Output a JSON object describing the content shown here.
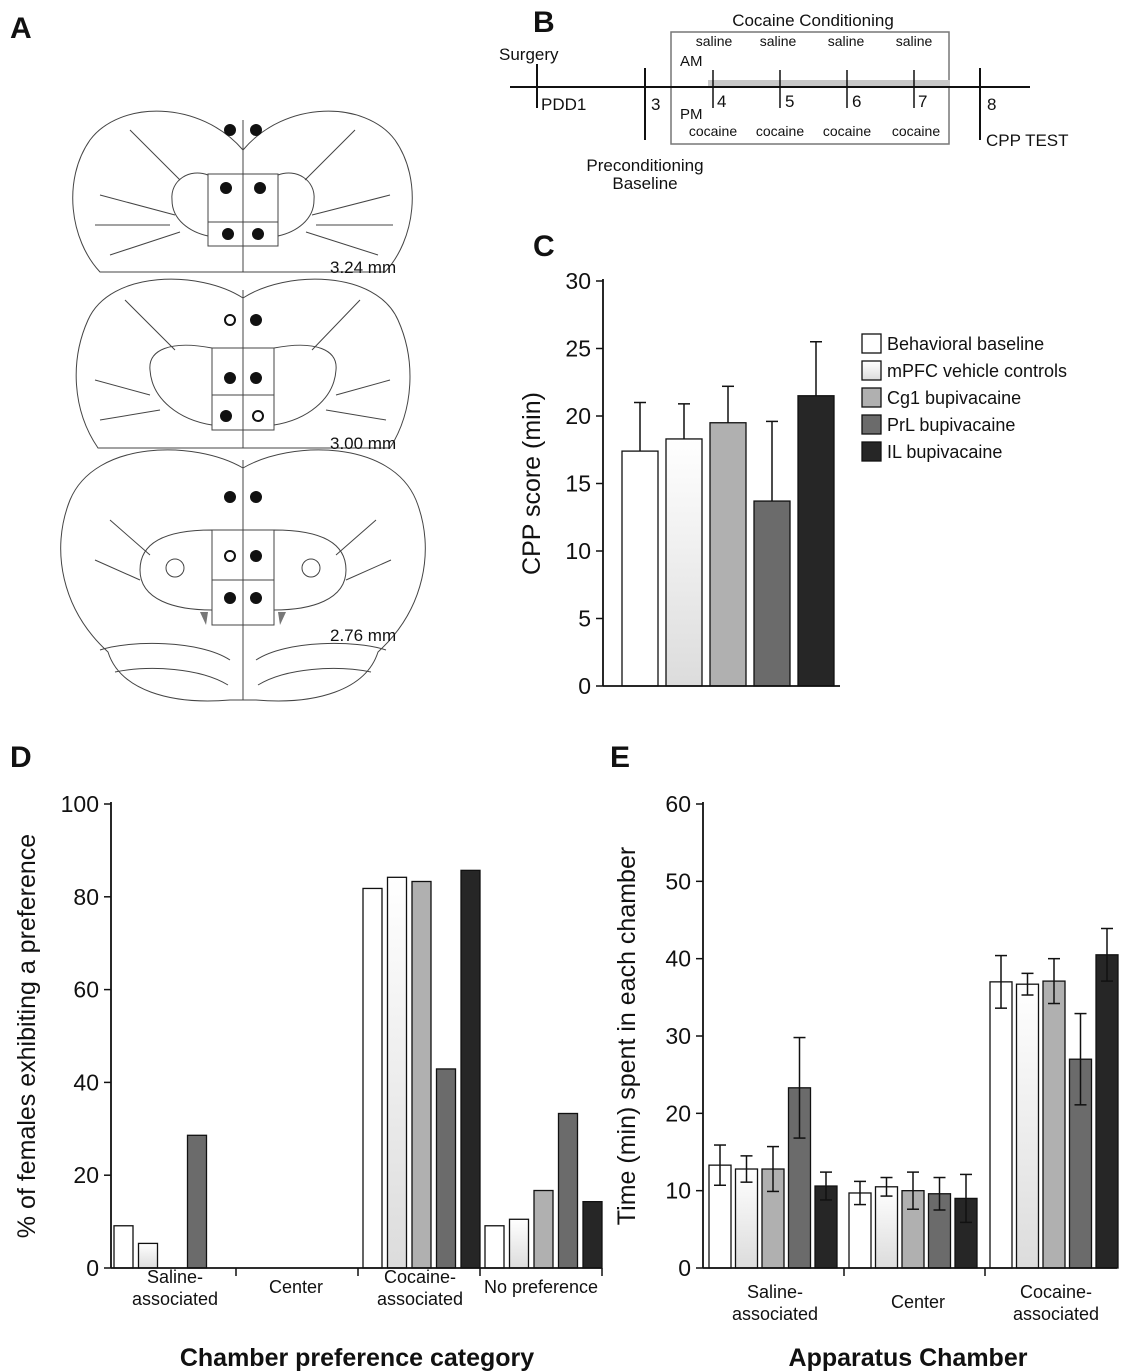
{
  "panels": {
    "A": "A",
    "B": "B",
    "C": "C",
    "D": "D",
    "E": "E"
  },
  "panel_a": {
    "levels": [
      "3.24 mm",
      "3.00 mm",
      "2.76 mm"
    ]
  },
  "panel_b": {
    "surgery": "Surgery",
    "pdd1": "PDD1",
    "day3": "3",
    "days": [
      "4",
      "5",
      "6",
      "7"
    ],
    "day8": "8",
    "conditioning_title": "Cocaine Conditioning",
    "am": "AM",
    "pm": "PM",
    "am_drug": "saline",
    "pm_drug": "cocaine",
    "preconditioning": "Preconditioning",
    "baseline": "Baseline",
    "cpp_test": "CPP TEST"
  },
  "colors": {
    "groups": [
      "#ffffff",
      "gradient-light",
      "#b0b0b0",
      "#6b6b6b",
      "#262626"
    ]
  },
  "chart_data": [
    {
      "id": "C",
      "type": "bar",
      "ylabel": "CPP score (min)",
      "ylim": [
        0,
        30
      ],
      "yticks": [
        0,
        5,
        10,
        15,
        20,
        25,
        30
      ],
      "legend_position": "right",
      "series": [
        {
          "name": "Behavioral baseline",
          "values": [
            17.4
          ],
          "errors": [
            3.6
          ]
        },
        {
          "name": "mPFC vehicle controls",
          "values": [
            18.3
          ],
          "errors": [
            2.6
          ]
        },
        {
          "name": "Cg1 bupivacaine",
          "values": [
            19.5
          ],
          "errors": [
            2.7
          ]
        },
        {
          "name": "PrL bupivacaine",
          "values": [
            13.7
          ],
          "errors": [
            5.9
          ]
        },
        {
          "name": "IL bupivacaine",
          "values": [
            21.5
          ],
          "errors": [
            4.0
          ]
        }
      ]
    },
    {
      "id": "D",
      "type": "bar",
      "xlabel": "Chamber preference category",
      "ylabel": "% of females exhibiting a preference",
      "ylim": [
        0,
        100
      ],
      "yticks": [
        0,
        20,
        40,
        60,
        80,
        100
      ],
      "categories": [
        [
          "Saline-",
          "associated"
        ],
        [
          "Center"
        ],
        [
          "Cocaine-",
          "associated"
        ],
        [
          "No preference"
        ]
      ],
      "series": [
        {
          "name": "Behavioral baseline",
          "values": [
            9.1,
            0,
            81.8,
            9.1
          ]
        },
        {
          "name": "mPFC vehicle controls",
          "values": [
            5.3,
            0,
            84.2,
            10.5
          ]
        },
        {
          "name": "Cg1 bupivacaine",
          "values": [
            0,
            0,
            83.3,
            16.7
          ]
        },
        {
          "name": "PrL bupivacaine",
          "values": [
            28.6,
            0,
            42.9,
            33.3
          ]
        },
        {
          "name": "IL bupivacaine",
          "values": [
            0,
            0,
            85.7,
            14.3
          ]
        }
      ]
    },
    {
      "id": "E",
      "type": "bar",
      "xlabel": "Apparatus Chamber",
      "ylabel": "Time (min) spent in each chamber",
      "ylim": [
        0,
        60
      ],
      "yticks": [
        0,
        10,
        20,
        30,
        40,
        50,
        60
      ],
      "categories": [
        [
          "Saline-",
          "associated"
        ],
        [
          "Center"
        ],
        [
          "Cocaine-",
          "associated"
        ]
      ],
      "series": [
        {
          "name": "Behavioral baseline",
          "values": [
            13.3,
            9.7,
            37.0
          ],
          "errors": [
            2.6,
            1.5,
            3.4
          ]
        },
        {
          "name": "mPFC vehicle controls",
          "values": [
            12.8,
            10.5,
            36.7
          ],
          "errors": [
            1.7,
            1.2,
            1.4
          ]
        },
        {
          "name": "Cg1 bupivacaine",
          "values": [
            12.8,
            10.0,
            37.1
          ],
          "errors": [
            2.9,
            2.4,
            2.9
          ]
        },
        {
          "name": "PrL bupivacaine",
          "values": [
            23.3,
            9.6,
            27.0
          ],
          "errors": [
            6.5,
            2.1,
            5.9
          ]
        },
        {
          "name": "IL bupivacaine",
          "values": [
            10.6,
            9.0,
            40.5
          ],
          "errors": [
            1.8,
            3.1,
            3.4
          ]
        }
      ]
    }
  ]
}
